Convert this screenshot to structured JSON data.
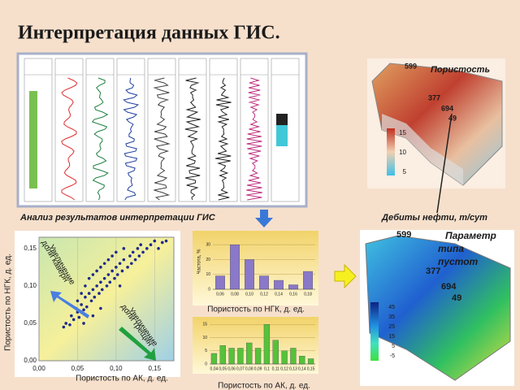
{
  "title": "Интерпретация данных ГИС.",
  "log_panel": {
    "caption": "Анализ результатов интерпретации ГИС"
  },
  "map_top": {
    "title": "Пористость",
    "caption": "Дебиты нефти, т/сут",
    "labels": [
      599,
      377,
      694,
      49
    ],
    "scale": [
      15,
      10,
      5
    ]
  },
  "map_bottom": {
    "title": [
      "Параметр",
      "типа",
      "пустот"
    ],
    "labels": [
      599,
      377,
      694,
      49
    ],
    "scale": [
      45,
      35,
      25,
      15,
      5,
      -5
    ]
  },
  "chart_data": [
    {
      "type": "scatter",
      "xlabel": "Пористость по АК, д. ед.",
      "ylabel": "Пористость по НГК, д. ед.",
      "color": "#1f2a8c",
      "annotations": [
        [
          "Увеличение",
          "доли каверн"
        ],
        [
          "Увеличение",
          "доли трещин"
        ]
      ],
      "x": [
        0.032,
        0.035,
        0.04,
        0.042,
        0.045,
        0.048,
        0.05,
        0.05,
        0.052,
        0.055,
        0.055,
        0.058,
        0.06,
        0.06,
        0.062,
        0.065,
        0.065,
        0.068,
        0.07,
        0.07,
        0.072,
        0.075,
        0.075,
        0.078,
        0.08,
        0.08,
        0.082,
        0.085,
        0.085,
        0.088,
        0.09,
        0.09,
        0.092,
        0.095,
        0.095,
        0.098,
        0.1,
        0.1,
        0.102,
        0.105,
        0.105,
        0.108,
        0.11,
        0.11,
        0.115,
        0.118,
        0.12,
        0.122,
        0.125,
        0.128,
        0.13,
        0.132,
        0.135,
        0.14,
        0.145,
        0.15,
        0.155,
        0.16,
        0.165,
        0.058,
        0.07,
        0.08
      ],
      "values": [
        0.045,
        0.05,
        0.048,
        0.06,
        0.055,
        0.07,
        0.065,
        0.08,
        0.058,
        0.075,
        0.09,
        0.068,
        0.085,
        0.1,
        0.072,
        0.09,
        0.11,
        0.08,
        0.095,
        0.115,
        0.085,
        0.1,
        0.12,
        0.09,
        0.105,
        0.125,
        0.095,
        0.11,
        0.13,
        0.1,
        0.115,
        0.135,
        0.105,
        0.12,
        0.14,
        0.11,
        0.125,
        0.145,
        0.115,
        0.13,
        0.1,
        0.12,
        0.135,
        0.15,
        0.125,
        0.14,
        0.13,
        0.145,
        0.135,
        0.15,
        0.14,
        0.155,
        0.145,
        0.15,
        0.155,
        0.16,
        0.15,
        0.158,
        0.16,
        0.05,
        0.06,
        0.07
      ],
      "xlim": [
        0,
        0.175
      ],
      "ylim": [
        0,
        0.165
      ],
      "xticks": [
        {
          "value": 0,
          "label": "0,00"
        },
        {
          "value": 0.05,
          "label": "0,05"
        },
        {
          "value": 0.1,
          "label": "0,10"
        },
        {
          "value": 0.15,
          "label": "0,15"
        }
      ],
      "yticks": [
        {
          "value": 0,
          "label": "0,00"
        },
        {
          "value": 0.05,
          "label": "0,05"
        },
        {
          "value": 0.1,
          "label": "0,10"
        },
        {
          "value": 0.15,
          "label": "0,15"
        }
      ]
    },
    {
      "type": "bar",
      "xlabel": "Пористость по НГК, д. ед.",
      "ylabel": "Частота, %",
      "color": "#8a78c8",
      "categories": [
        "0,06",
        "0,08",
        "0,10",
        "0,12",
        "0,14",
        "0,16",
        "0,18"
      ],
      "values": [
        9,
        30,
        20,
        9,
        6,
        3,
        12
      ],
      "ylim": [
        0,
        35
      ],
      "yticks": [
        0,
        10,
        20,
        30
      ],
      "grid": true
    },
    {
      "type": "bar",
      "xlabel": "Пористость по АК, д. ед.",
      "color": "#55c23a",
      "categories": [
        "0,04",
        "0,05",
        "0,06",
        "0,07",
        "0,08",
        "0,09",
        "0,1",
        "0,11",
        "0,12",
        "0,13",
        "0,14",
        "0,15"
      ],
      "values": [
        4,
        7,
        6,
        6,
        8,
        6,
        15,
        9,
        5,
        6,
        3,
        2
      ],
      "ylim": [
        0,
        16
      ],
      "yticks": [
        0,
        5,
        10,
        15
      ],
      "grid": true
    }
  ]
}
